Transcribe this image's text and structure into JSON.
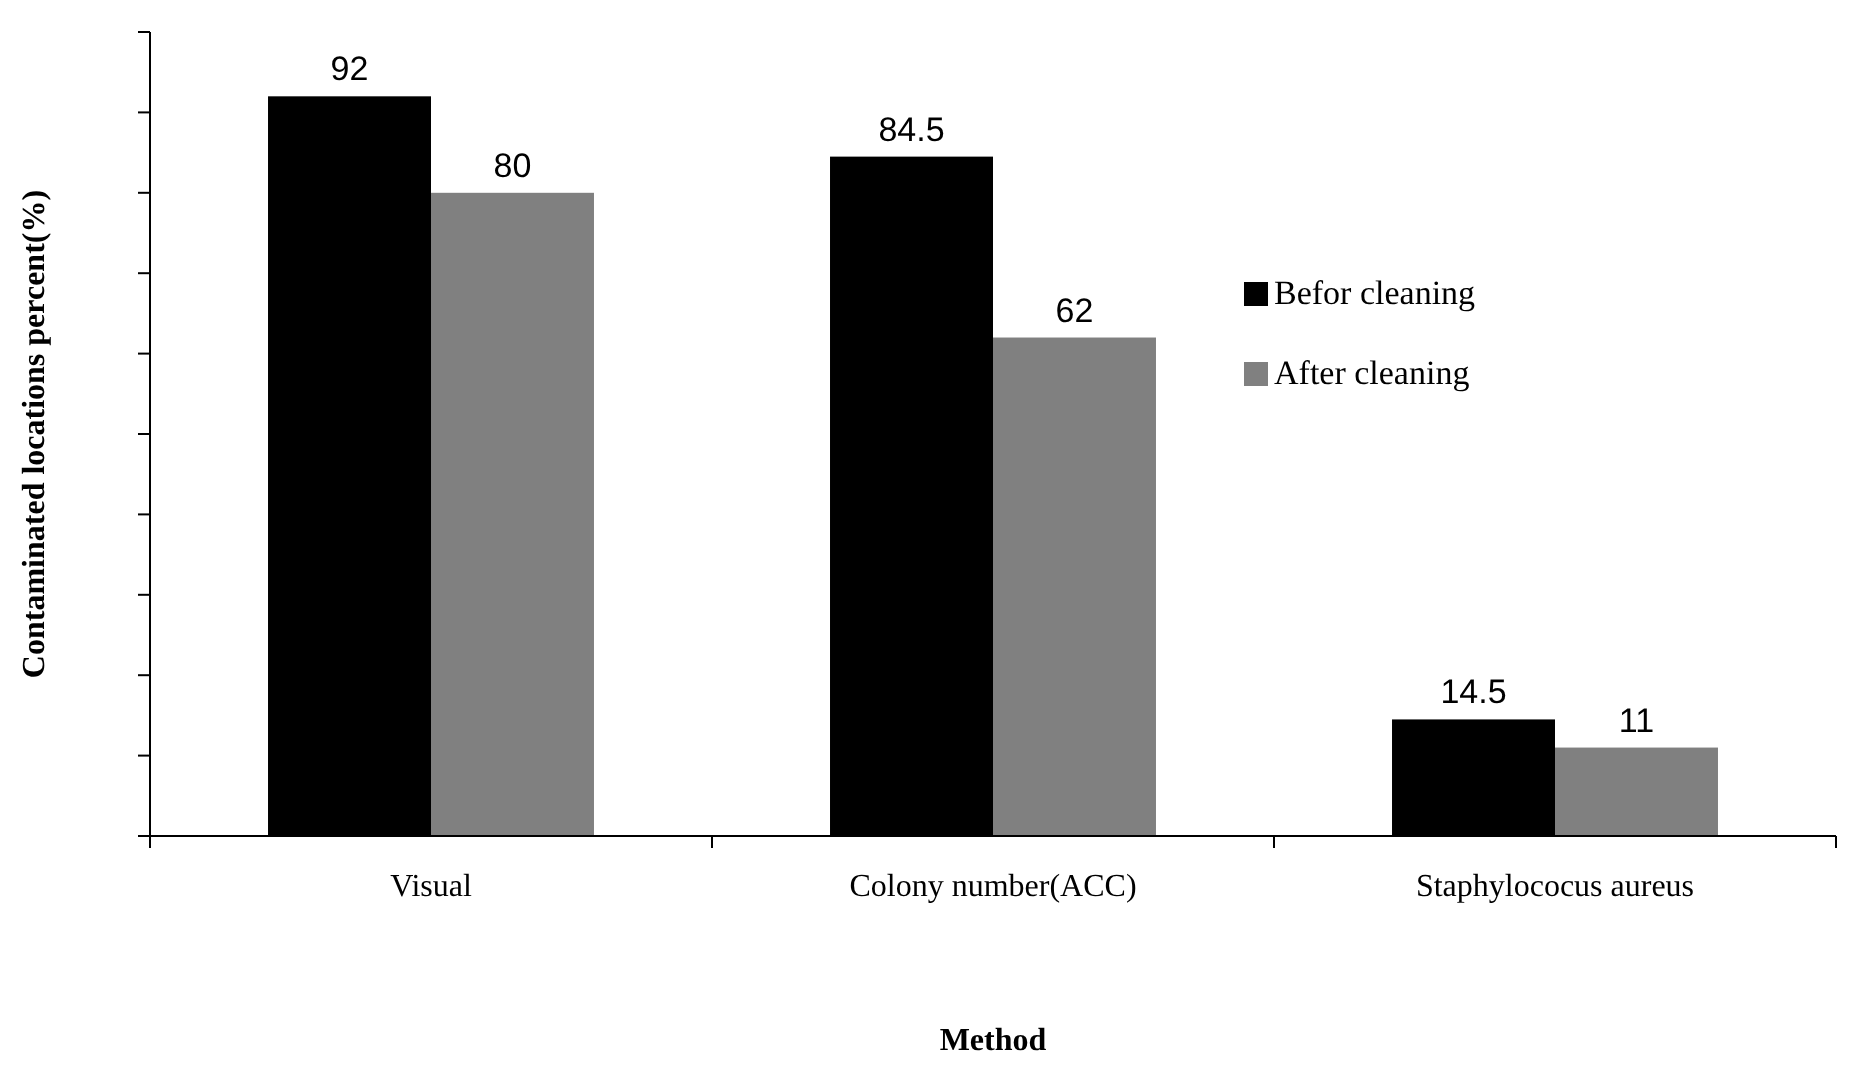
{
  "chart_data": {
    "type": "bar",
    "xlabel": "Method",
    "ylabel": "Contaminated locations percent(%)",
    "categories": [
      "Visual",
      "Colony number(ACC)",
      "Staphylococus aureus"
    ],
    "series": [
      {
        "name": "Befor cleaning",
        "color": "#000000",
        "values": [
          92,
          84.5,
          14.5
        ]
      },
      {
        "name": "After cleaning",
        "color": "#808080",
        "values": [
          80,
          62,
          11
        ]
      }
    ],
    "ylim": [
      0,
      100
    ],
    "yticks": [
      {
        "value": 0,
        "label": null
      },
      {
        "value": 10,
        "label": null
      },
      {
        "value": 20,
        "label": null
      },
      {
        "value": 30,
        "label": null
      },
      {
        "value": 40,
        "label": null
      },
      {
        "value": 50,
        "label": null
      },
      {
        "value": 60,
        "label": null
      },
      {
        "value": 70,
        "label": null
      },
      {
        "value": 80,
        "label": null
      },
      {
        "value": 90,
        "label": null
      },
      {
        "value": 100,
        "label": null
      }
    ],
    "tick_labels": "x",
    "data_labels": true,
    "legend": "right",
    "grid": false
  }
}
